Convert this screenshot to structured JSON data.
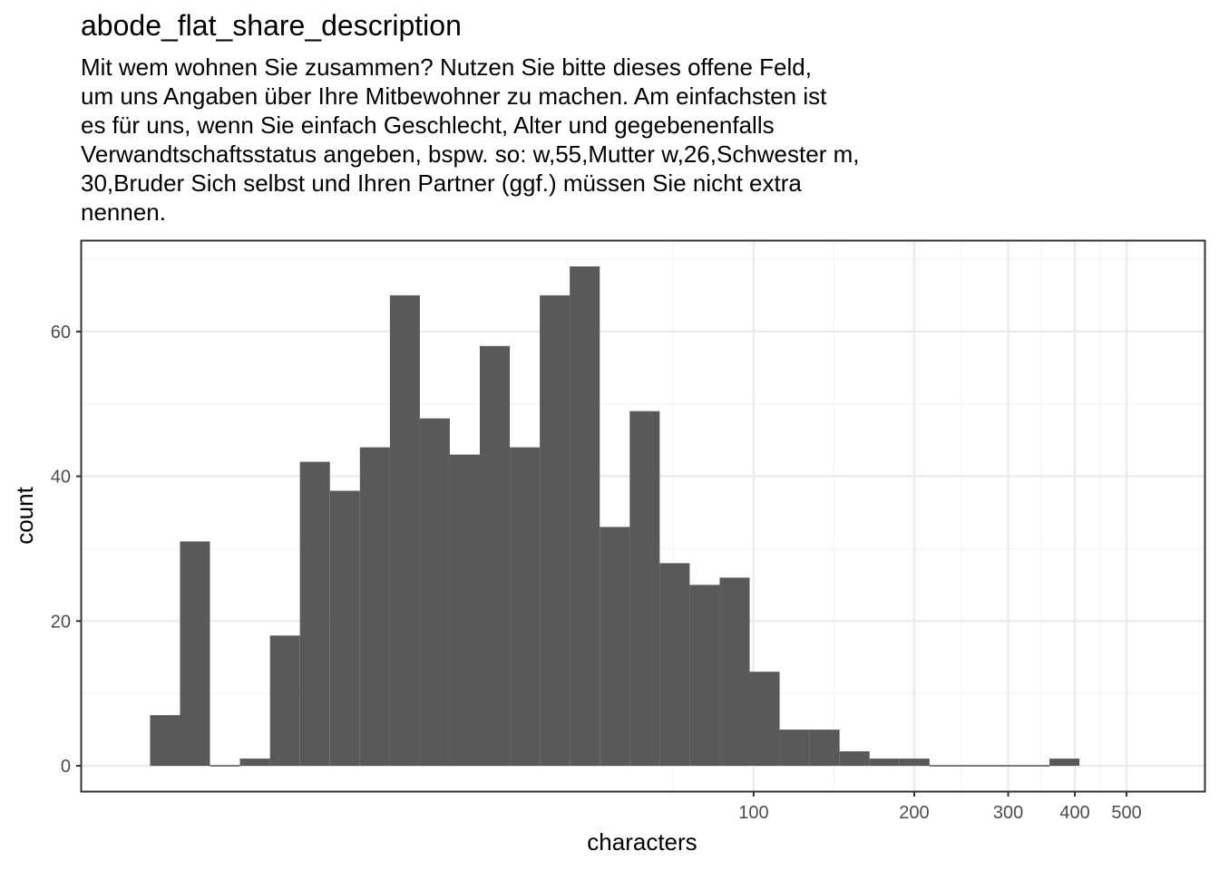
{
  "title": "abode_flat_share_description",
  "subtitle": "Mit wem wohnen Sie zusammen? Nutzen Sie bitte dieses offene Feld,\num uns Angaben über Ihre Mitbewohner zu machen. Am einfachsten ist\nes für uns, wenn Sie einfach Geschlecht, Alter und gegebenenfalls\nVerwandtschaftsstatus angeben, bspw. so: w,55,Mutter w,26,Schwester m,\n30,Bruder Sich selbst und Ihren Partner (ggf.) müssen Sie nicht extra\nnennen.",
  "chart_data": {
    "type": "bar",
    "xlabel": "characters",
    "ylabel": "count",
    "x_scale": "log10",
    "x_ticks": [
      100,
      200,
      300,
      400,
      500
    ],
    "x_tick_labels": [
      "100",
      "200",
      "300",
      "400",
      "500"
    ],
    "y_ticks": [
      0,
      20,
      40,
      60
    ],
    "y_tick_labels": [
      "0",
      "20",
      "40",
      "60"
    ],
    "ylim": [
      -3.5,
      72.5
    ],
    "xlim": [
      5.5,
      700
    ],
    "grid": true,
    "bins": [
      {
        "x0": 7.39,
        "x1": 8.41,
        "count": 7
      },
      {
        "x0": 8.41,
        "x1": 9.57,
        "count": 31
      },
      {
        "x0": 9.57,
        "x1": 10.89,
        "count": 0
      },
      {
        "x0": 10.89,
        "x1": 12.4,
        "count": 1
      },
      {
        "x0": 12.4,
        "x1": 14.11,
        "count": 18
      },
      {
        "x0": 14.11,
        "x1": 16.06,
        "count": 42
      },
      {
        "x0": 16.06,
        "x1": 18.28,
        "count": 38
      },
      {
        "x0": 18.28,
        "x1": 20.81,
        "count": 44
      },
      {
        "x0": 20.81,
        "x1": 23.68,
        "count": 65
      },
      {
        "x0": 23.68,
        "x1": 26.95,
        "count": 48
      },
      {
        "x0": 26.95,
        "x1": 30.67,
        "count": 43
      },
      {
        "x0": 30.67,
        "x1": 34.91,
        "count": 58
      },
      {
        "x0": 34.91,
        "x1": 39.73,
        "count": 44
      },
      {
        "x0": 39.73,
        "x1": 45.22,
        "count": 65
      },
      {
        "x0": 45.22,
        "x1": 51.47,
        "count": 69
      },
      {
        "x0": 51.47,
        "x1": 58.58,
        "count": 33
      },
      {
        "x0": 58.58,
        "x1": 66.67,
        "count": 49
      },
      {
        "x0": 66.67,
        "x1": 75.88,
        "count": 28
      },
      {
        "x0": 75.88,
        "x1": 86.36,
        "count": 25
      },
      {
        "x0": 86.36,
        "x1": 98.29,
        "count": 26
      },
      {
        "x0": 98.29,
        "x1": 111.87,
        "count": 13
      },
      {
        "x0": 111.87,
        "x1": 127.32,
        "count": 5
      },
      {
        "x0": 127.32,
        "x1": 144.91,
        "count": 5
      },
      {
        "x0": 144.91,
        "x1": 164.93,
        "count": 2
      },
      {
        "x0": 164.93,
        "x1": 187.72,
        "count": 1
      },
      {
        "x0": 187.72,
        "x1": 213.65,
        "count": 1
      },
      {
        "x0": 213.65,
        "x1": 243.17,
        "count": 0
      },
      {
        "x0": 243.17,
        "x1": 276.76,
        "count": 0
      },
      {
        "x0": 276.76,
        "x1": 315.0,
        "count": 0
      },
      {
        "x0": 315.0,
        "x1": 358.52,
        "count": 0
      },
      {
        "x0": 358.52,
        "x1": 408.05,
        "count": 1
      }
    ],
    "colors": {
      "bar": "#595959",
      "panel_border": "#333333",
      "grid_major": "#ebebeb",
      "grid_minor": "#f4f4f4",
      "tick_text": "#4d4d4d"
    }
  }
}
